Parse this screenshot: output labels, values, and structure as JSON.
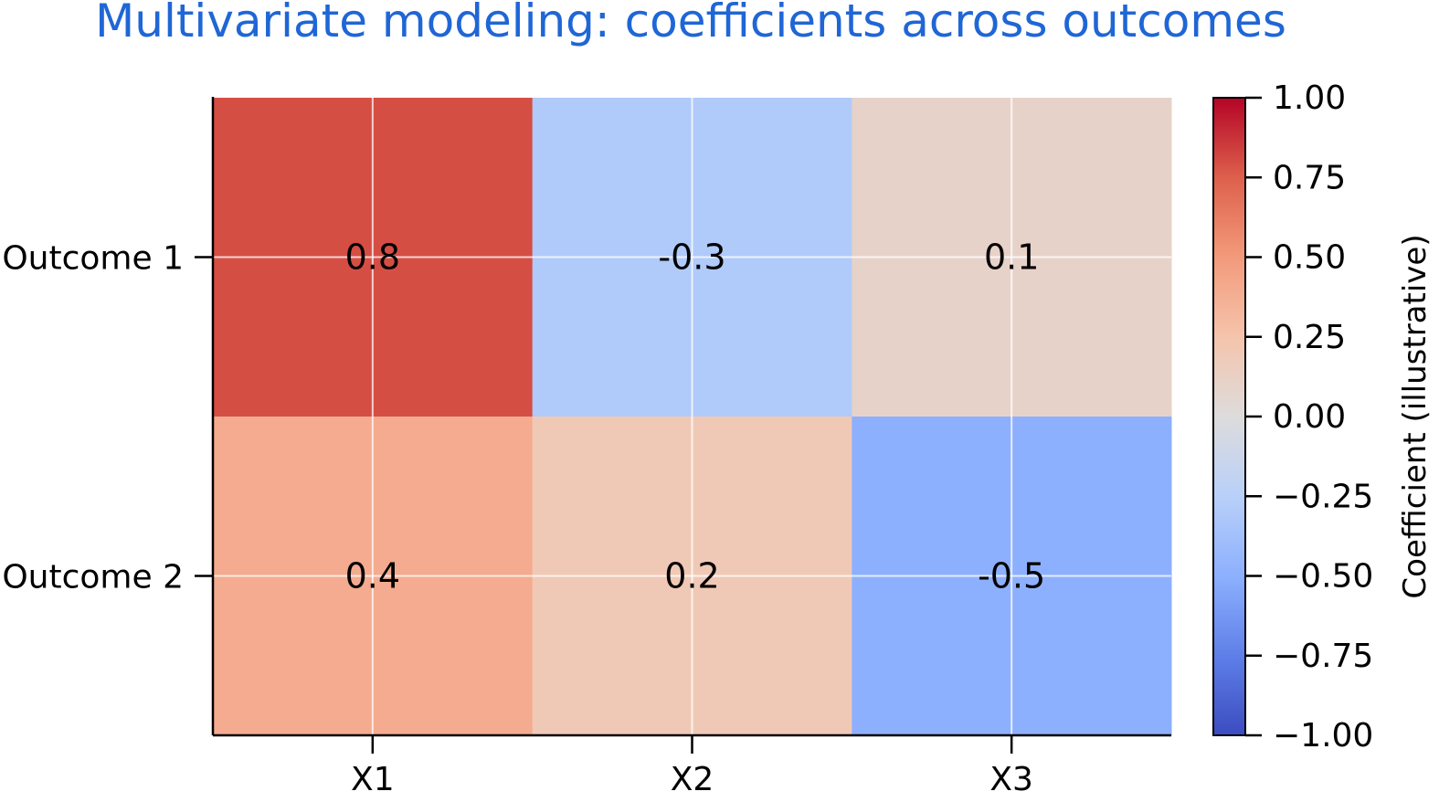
{
  "chart_data": {
    "type": "heatmap",
    "title": "Multivariate modeling: coefficients across outcomes",
    "x_categories": [
      "X1",
      "X2",
      "X3"
    ],
    "y_categories": [
      "Outcome 1",
      "Outcome 2"
    ],
    "values": [
      [
        0.8,
        -0.3,
        0.1
      ],
      [
        0.4,
        0.2,
        -0.5
      ]
    ],
    "value_labels": [
      [
        "0.8",
        "-0.3",
        "0.1"
      ],
      [
        "0.4",
        "0.2",
        "-0.5"
      ]
    ],
    "colorbar": {
      "label": "Coefficient (illustrative)",
      "range": [
        -1.0,
        1.0
      ],
      "ticks": [
        1.0,
        0.75,
        0.5,
        0.25,
        0.0,
        -0.25,
        -0.5,
        -0.75,
        -1.0
      ],
      "tick_labels": [
        "1.00",
        "0.75",
        "0.50",
        "0.25",
        "0.00",
        "−0.25",
        "−0.50",
        "−0.75",
        "−1.00"
      ],
      "colormap": "coolwarm"
    },
    "grid": true,
    "colors": {
      "title": "#1f66d6",
      "colormap_low": "#3b4cc0",
      "colormap_mid": "#dddcdc",
      "colormap_high": "#b40426"
    }
  }
}
